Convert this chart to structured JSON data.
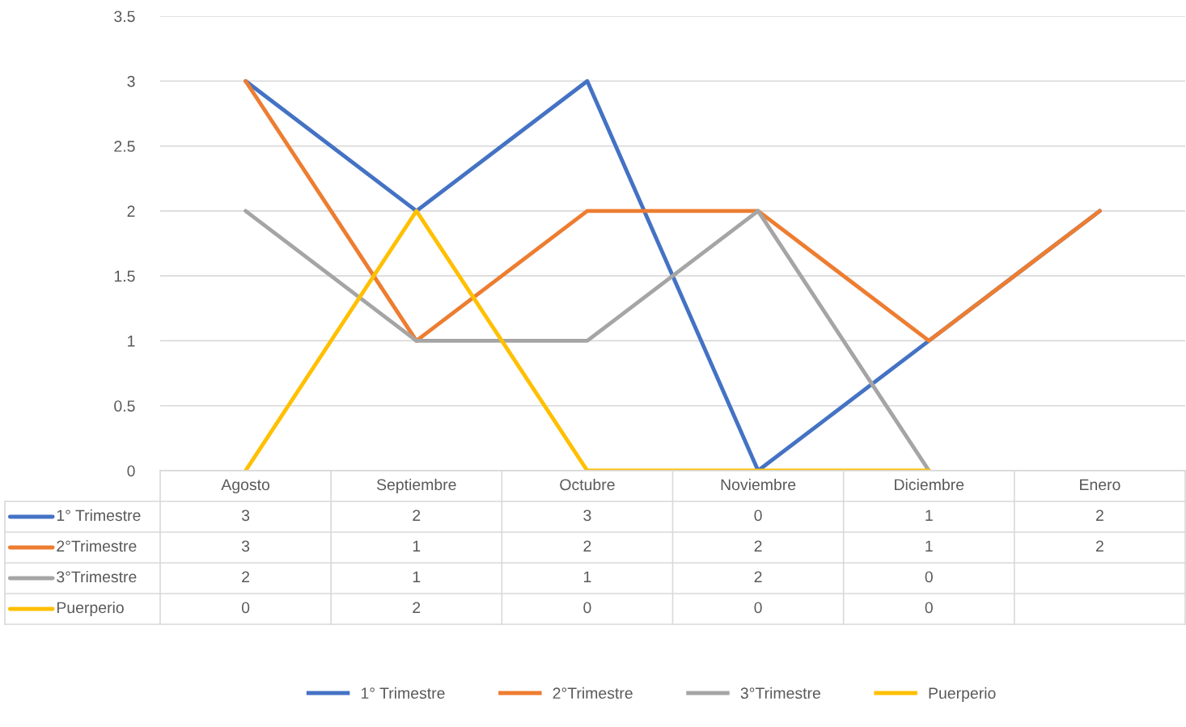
{
  "chart_data": {
    "type": "line",
    "categories": [
      "Agosto",
      "Septiembre",
      "Octubre",
      "Noviembre",
      "Diciembre",
      "Enero"
    ],
    "series": [
      {
        "name": "1° Trimestre",
        "color": "#4472c4",
        "values": [
          3,
          2,
          3,
          0,
          1,
          2
        ]
      },
      {
        "name": "2°Trimestre",
        "color": "#ed7d31",
        "values": [
          3,
          1,
          2,
          2,
          1,
          2
        ]
      },
      {
        "name": "3°Trimestre",
        "color": "#a5a5a5",
        "values": [
          2,
          1,
          1,
          2,
          0,
          null
        ]
      },
      {
        "name": "Puerperio",
        "color": "#ffc000",
        "values": [
          0,
          2,
          0,
          0,
          0,
          null
        ]
      }
    ],
    "ylim": [
      0,
      3.5
    ],
    "yticks": [
      0,
      0.5,
      1,
      1.5,
      2,
      2.5,
      3,
      3.5
    ],
    "grid": "y",
    "legend": "bottom",
    "marker": "none",
    "line_style": "solid",
    "data_labels": true
  }
}
